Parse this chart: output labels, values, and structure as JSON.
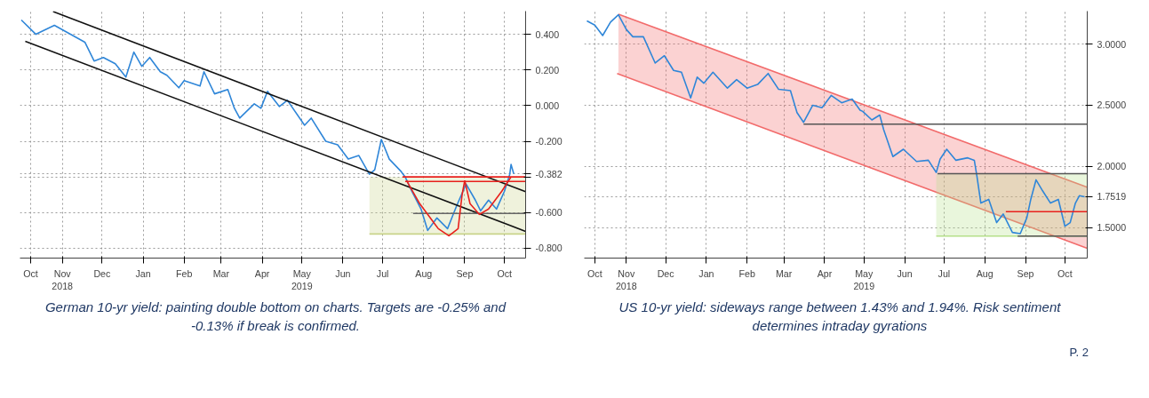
{
  "chart_data": [
    {
      "type": "line",
      "xlim": [
        "2018-10-14",
        "2019-10-31"
      ],
      "ylim": [
        -0.855,
        0.53
      ],
      "grid": true,
      "xticks": [
        {
          "value": "2018-10-22",
          "label": "Oct"
        },
        {
          "value": "2018-11-15",
          "label": "Nov\n2018"
        },
        {
          "value": "2018-12-15",
          "label": "Dec"
        },
        {
          "value": "2019-01-15",
          "label": "Jan"
        },
        {
          "value": "2019-02-15",
          "label": "Feb"
        },
        {
          "value": "2019-03-15",
          "label": "Mar"
        },
        {
          "value": "2019-04-15",
          "label": "Apr"
        },
        {
          "value": "2019-05-15",
          "label": "May\n2019"
        },
        {
          "value": "2019-06-15",
          "label": "Jun"
        },
        {
          "value": "2019-07-15",
          "label": "Jul"
        },
        {
          "value": "2019-08-15",
          "label": "Aug"
        },
        {
          "value": "2019-09-15",
          "label": "Sep"
        },
        {
          "value": "2019-10-15",
          "label": "Oct"
        }
      ],
      "yticks": [
        {
          "value": 0.4,
          "label": "0.400"
        },
        {
          "value": 0.2,
          "label": "0.200"
        },
        {
          "value": 0,
          "label": "0.000"
        },
        {
          "value": -0.2,
          "label": "-0.200"
        },
        {
          "value": -0.382,
          "label": "-0.382"
        },
        {
          "value": -0.4,
          "label": null
        },
        {
          "value": -0.6,
          "label": "-0.600"
        },
        {
          "value": -0.8,
          "label": "-0.800"
        }
      ],
      "annotations": [
        "German 10-yr yield: painting double bottom on charts. Targets are -0.25% and -0.13% if break is confirmed."
      ],
      "series": [
        {
          "color": "#c9d48a",
          "x": [
            "2019-07-05",
            "2019-10-31"
          ],
          "values": [
            -0.72,
            -0.72
          ],
          "lower": [
            -0.72,
            -0.72
          ],
          "upper": [
            -0.4,
            -0.4
          ]
        },
        {
          "color": "#2f86d8",
          "x": [
            "2018-10-15",
            "2018-10-26",
            "2018-11-09",
            "2018-12-02",
            "2018-12-09",
            "2018-12-16",
            "2018-12-25",
            "2019-01-02",
            "2019-01-08",
            "2019-01-14",
            "2019-01-20",
            "2019-01-28",
            "2019-02-02",
            "2019-02-11",
            "2019-02-15",
            "2019-02-27",
            "2019-03-02",
            "2019-03-10",
            "2019-03-20",
            "2019-03-25",
            "2019-03-29",
            "2019-04-09",
            "2019-04-14",
            "2019-04-19",
            "2019-04-28",
            "2019-05-04",
            "2019-05-17",
            "2019-05-22",
            "2019-06-02",
            "2019-06-11",
            "2019-06-19",
            "2019-06-27",
            "2019-07-05",
            "2019-07-09",
            "2019-07-14",
            "2019-07-20",
            "2019-07-29",
            "2019-08-01",
            "2019-08-06",
            "2019-08-13",
            "2019-08-18",
            "2019-08-25",
            "2019-09-02",
            "2019-09-09",
            "2019-09-16",
            "2019-09-23",
            "2019-09-27",
            "2019-10-03",
            "2019-10-09",
            "2019-10-15",
            "2019-10-19",
            "2019-10-20",
            "2019-10-22"
          ],
          "values": [
            0.48,
            0.4,
            0.45,
            0.356,
            0.25,
            0.27,
            0.235,
            0.16,
            0.3,
            0.22,
            0.27,
            0.19,
            0.17,
            0.1,
            0.14,
            0.11,
            0.19,
            0.066,
            0.09,
            -0.015,
            -0.07,
            0.01,
            -0.015,
            0.08,
            -0.005,
            0.03,
            -0.11,
            -0.07,
            -0.2,
            -0.22,
            -0.3,
            -0.28,
            -0.385,
            -0.36,
            -0.19,
            -0.3,
            -0.37,
            -0.4,
            -0.48,
            -0.58,
            -0.7,
            -0.63,
            -0.69,
            -0.56,
            -0.44,
            -0.53,
            -0.59,
            -0.53,
            -0.58,
            -0.48,
            -0.385,
            -0.33,
            -0.382
          ]
        },
        {
          "color": "#111111",
          "x": [
            "2018-11-08",
            "2019-10-31"
          ],
          "values": [
            0.527,
            -0.483
          ]
        },
        {
          "color": "#111111",
          "x": [
            "2018-10-18",
            "2019-10-31"
          ],
          "values": [
            0.36,
            -0.705
          ]
        },
        {
          "color": "#e8201c",
          "x": [
            "2019-07-30",
            "2019-10-31"
          ],
          "values": [
            -0.4,
            -0.4
          ]
        },
        {
          "color": "#e8201c",
          "x": [
            "2019-08-01",
            "2019-10-31"
          ],
          "values": [
            -0.425,
            -0.425
          ]
        },
        {
          "color": "#666666",
          "x": [
            "2019-08-07",
            "2019-10-31"
          ],
          "values": [
            -0.605,
            -0.605
          ]
        },
        {
          "color": "#e8201c",
          "x": [
            "2019-08-02",
            "2019-08-12",
            "2019-08-26",
            "2019-09-03",
            "2019-09-10",
            "2019-09-13",
            "2019-09-15"
          ],
          "values": [
            -0.42,
            -0.55,
            -0.69,
            -0.73,
            -0.69,
            -0.5,
            -0.42
          ]
        },
        {
          "color": "#e8201c",
          "x": [
            "2019-09-15",
            "2019-09-19",
            "2019-09-26",
            "2019-10-03",
            "2019-10-13",
            "2019-10-20"
          ],
          "values": [
            -0.42,
            -0.55,
            -0.61,
            -0.58,
            -0.48,
            -0.4
          ]
        }
      ]
    },
    {
      "type": "line",
      "xlim": [
        "2018-10-14",
        "2019-11-01"
      ],
      "ylim": [
        1.25,
        3.27
      ],
      "grid": true,
      "xticks": [
        {
          "value": "2018-10-22",
          "label": "Oct"
        },
        {
          "value": "2018-11-15",
          "label": "Nov\n2018"
        },
        {
          "value": "2018-12-15",
          "label": "Dec"
        },
        {
          "value": "2019-01-15",
          "label": "Jan"
        },
        {
          "value": "2019-02-15",
          "label": "Feb"
        },
        {
          "value": "2019-03-15",
          "label": "Mar"
        },
        {
          "value": "2019-04-15",
          "label": "Apr"
        },
        {
          "value": "2019-05-15",
          "label": "May\n2019"
        },
        {
          "value": "2019-06-15",
          "label": "Jun"
        },
        {
          "value": "2019-07-15",
          "label": "Jul"
        },
        {
          "value": "2019-08-15",
          "label": "Aug"
        },
        {
          "value": "2019-09-15",
          "label": "Sep"
        },
        {
          "value": "2019-10-15",
          "label": "Oct"
        }
      ],
      "yticks": [
        {
          "value": 3.0,
          "label": "3.0000"
        },
        {
          "value": 2.5,
          "label": "2.5000"
        },
        {
          "value": 2.0,
          "label": "2.0000"
        },
        {
          "value": 1.7519,
          "label": "1.7519"
        },
        {
          "value": 1.5,
          "label": "1.5000"
        }
      ],
      "annotations": [
        "US 10-yr yield: sideways range between 1.43% and 1.94%. Risk sentiment determines intraday gyrations",
        "P. 2"
      ],
      "series": [
        {
          "color": "#f26b6b",
          "x": [
            "2018-11-09",
            "2019-11-01"
          ],
          "values": [
            3.245,
            1.83
          ],
          "lower": [
            2.76,
            1.33
          ],
          "upper": [
            3.245,
            1.83
          ]
        },
        {
          "color": "#f26b6b",
          "x": [
            "2018-11-08",
            "2019-11-01"
          ],
          "values": [
            2.76,
            1.33
          ]
        },
        {
          "color": "#b5e08a",
          "x": [
            "2019-07-09",
            "2019-11-01"
          ],
          "values": [
            1.43,
            1.43
          ],
          "lower": [
            1.43,
            1.43
          ],
          "upper": [
            1.94,
            1.94
          ]
        },
        {
          "color": "#2f86d8",
          "x": [
            "2018-10-16",
            "2018-10-22",
            "2018-10-28",
            "2018-11-03",
            "2018-11-09",
            "2018-11-15",
            "2018-11-20",
            "2018-11-28",
            "2018-12-07",
            "2018-12-14",
            "2018-12-21",
            "2018-12-27",
            "2019-01-03",
            "2019-01-08",
            "2019-01-13",
            "2019-01-20",
            "2019-01-31",
            "2019-02-07",
            "2019-02-15",
            "2019-02-23",
            "2019-03-03",
            "2019-03-11",
            "2019-03-20",
            "2019-03-25",
            "2019-03-30",
            "2019-04-06",
            "2019-04-13",
            "2019-04-20",
            "2019-04-28",
            "2019-05-06",
            "2019-05-12",
            "2019-05-14",
            "2019-05-21",
            "2019-05-27",
            "2019-05-30",
            "2019-06-06",
            "2019-06-14",
            "2019-06-24",
            "2019-07-03",
            "2019-07-09",
            "2019-07-12",
            "2019-07-17",
            "2019-07-24",
            "2019-08-02",
            "2019-08-07",
            "2019-08-09",
            "2019-08-12",
            "2019-08-18",
            "2019-08-24",
            "2019-08-29",
            "2019-09-05",
            "2019-09-11",
            "2019-09-16",
            "2019-09-19",
            "2019-09-23",
            "2019-09-28",
            "2019-10-04",
            "2019-10-10",
            "2019-10-15",
            "2019-10-19",
            "2019-10-23",
            "2019-10-26",
            "2019-10-30"
          ],
          "values": [
            3.19,
            3.155,
            3.07,
            3.18,
            3.24,
            3.12,
            3.06,
            3.06,
            2.845,
            2.905,
            2.785,
            2.77,
            2.56,
            2.73,
            2.68,
            2.77,
            2.64,
            2.71,
            2.64,
            2.67,
            2.76,
            2.63,
            2.62,
            2.44,
            2.36,
            2.5,
            2.48,
            2.58,
            2.52,
            2.55,
            2.46,
            2.45,
            2.38,
            2.42,
            2.3,
            2.08,
            2.14,
            2.04,
            2.05,
            1.95,
            2.06,
            2.14,
            2.05,
            2.07,
            2.05,
            1.92,
            1.7,
            1.73,
            1.54,
            1.61,
            1.46,
            1.45,
            1.58,
            1.73,
            1.89,
            1.8,
            1.7,
            1.73,
            1.51,
            1.54,
            1.7,
            1.76,
            1.7519
          ]
        },
        {
          "color": "#555555",
          "x": [
            "2019-03-30",
            "2019-11-01"
          ],
          "values": [
            2.345,
            2.345
          ]
        },
        {
          "color": "#555555",
          "x": [
            "2019-07-10",
            "2019-11-01"
          ],
          "values": [
            1.94,
            1.94
          ]
        },
        {
          "color": "#e8201c",
          "x": [
            "2019-08-31",
            "2019-11-01"
          ],
          "values": [
            1.63,
            1.63
          ]
        },
        {
          "color": "#555555",
          "x": [
            "2019-09-09",
            "2019-11-01"
          ],
          "values": [
            1.43,
            1.43
          ]
        }
      ]
    }
  ]
}
